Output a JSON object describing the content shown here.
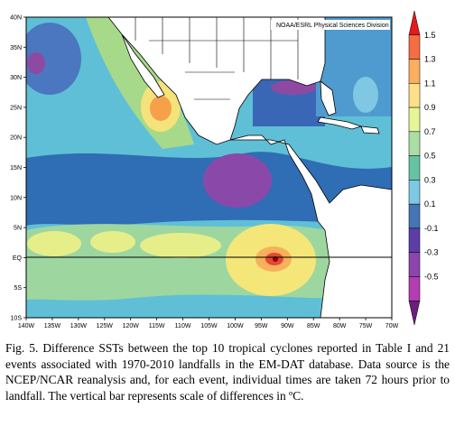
{
  "figure": {
    "credit": "NOAA/ESRL Physical Sciences Division",
    "lon_ticks": [
      "140W",
      "135W",
      "130W",
      "125W",
      "120W",
      "115W",
      "110W",
      "105W",
      "100W",
      "95W",
      "90W",
      "85W",
      "80W",
      "75W",
      "70W"
    ],
    "lat_ticks": [
      "40N",
      "35N",
      "30N",
      "25N",
      "20N",
      "15N",
      "10N",
      "5N",
      "EQ",
      "5S",
      "10S"
    ],
    "colorbar_ticks": [
      "1.5",
      "1.3",
      "1.1",
      "0.9",
      "0.7",
      "0.5",
      "0.3",
      "0.1",
      "-0.1",
      "-0.3",
      "-0.5"
    ],
    "colorbar_colors": [
      "#e41a1c",
      "#f46d43",
      "#fdae61",
      "#fee08b",
      "#e6f598",
      "#abdda4",
      "#66c2a5",
      "#7ec8e3",
      "#4575b4",
      "#5b3ea8",
      "#8e44ad",
      "#b33db3",
      "#6b1f7a"
    ],
    "extent": {
      "lon": [
        -140,
        -70
      ],
      "lat": [
        -10,
        40
      ]
    },
    "equator_line": true
  },
  "caption": {
    "text": "Fig. 5. Difference SSTs between the top 10 tropical cyclones reported in Table I and 21 events associated with 1970-2010 landfalls in the EM-DAT database. Data source is the NCEP/NCAR reanalysis and, for each event, individual times are taken 72 hours prior to landfall. The vertical bar represents scale of differences in ºC."
  }
}
